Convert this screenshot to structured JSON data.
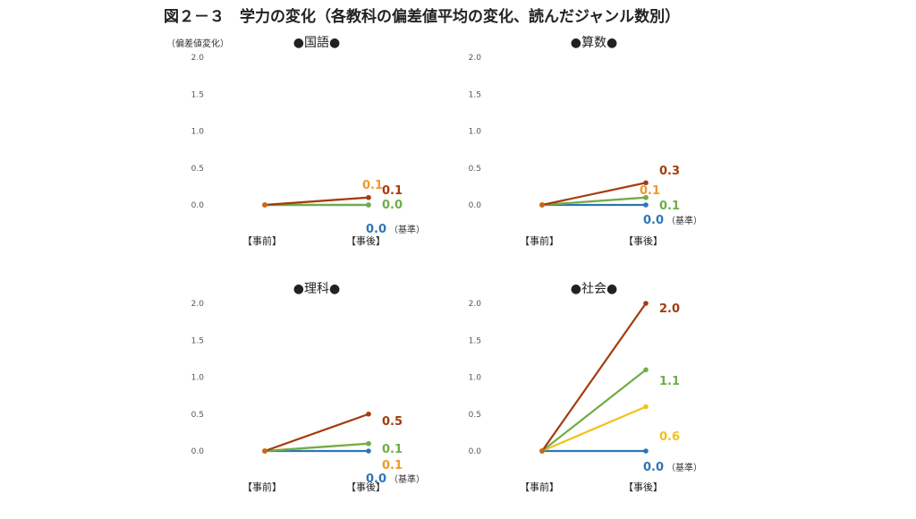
{
  "figure": {
    "title": "図２－３　学力の変化（各教科の偏差値平均の変化、読んだジャンル数別）",
    "y_unit": "（偏差値変化）"
  },
  "colors": {
    "series_0": "#2e75b6",
    "series_1": "#ed9a2a",
    "series_2": "#70ad47",
    "series_3": "#a33c0e",
    "series_2_social": "#f2c21b",
    "series_1_social": "#70ad47",
    "axis_text": "#555555",
    "dot": "#777777"
  },
  "base_note": "（基準）",
  "chart_data": [
    {
      "type": "line",
      "title": "●国語●",
      "categories": [
        "【事前】",
        "【事後】"
      ],
      "y_ticks": [
        "2.0",
        "1.5",
        "1.0",
        "0.5",
        "0.0"
      ],
      "ylim": [
        0,
        2
      ],
      "series": [
        {
          "values": [
            0,
            0.0
          ],
          "label": "0.0",
          "color": "#2e75b6",
          "base": true
        },
        {
          "values": [
            0,
            0.1
          ],
          "label": "0.1",
          "color": "#ed9a2a"
        },
        {
          "values": [
            0,
            0.0
          ],
          "label": "0.0",
          "color": "#70ad47"
        },
        {
          "values": [
            0,
            0.1
          ],
          "label": "0.1",
          "color": "#a33c0e"
        }
      ]
    },
    {
      "type": "line",
      "title": "●算数●",
      "categories": [
        "【事前】",
        "【事後】"
      ],
      "y_ticks": [
        "2.0",
        "1.5",
        "1.0",
        "0.5",
        "0.0"
      ],
      "ylim": [
        0,
        2
      ],
      "series": [
        {
          "values": [
            0,
            0.0
          ],
          "label": "0.0",
          "color": "#2e75b6",
          "base": true
        },
        {
          "values": [
            0,
            0.1
          ],
          "label": "0.1",
          "color": "#ed9a2a"
        },
        {
          "values": [
            0,
            0.1
          ],
          "label": "0.1",
          "color": "#70ad47"
        },
        {
          "values": [
            0,
            0.3
          ],
          "label": "0.3",
          "color": "#a33c0e"
        }
      ]
    },
    {
      "type": "line",
      "title": "●理科●",
      "categories": [
        "【事前】",
        "【事後】"
      ],
      "y_ticks": [
        "2.0",
        "1.5",
        "1.0",
        "0.5",
        "0.0"
      ],
      "ylim": [
        0,
        2
      ],
      "series": [
        {
          "values": [
            0,
            0.0
          ],
          "label": "0.0",
          "color": "#2e75b6",
          "base": true
        },
        {
          "values": [
            0,
            0.1
          ],
          "label": "0.1",
          "color": "#ed9a2a"
        },
        {
          "values": [
            0,
            0.1
          ],
          "label": "0.1",
          "color": "#70ad47"
        },
        {
          "values": [
            0,
            0.5
          ],
          "label": "0.5",
          "color": "#a33c0e"
        }
      ]
    },
    {
      "type": "line",
      "title": "●社会●",
      "categories": [
        "【事前】",
        "【事後】"
      ],
      "y_ticks": [
        "2.0",
        "1.5",
        "1.0",
        "0.5",
        "0.0"
      ],
      "ylim": [
        0,
        2
      ],
      "series": [
        {
          "values": [
            0,
            0.0
          ],
          "label": "0.0",
          "color": "#2e75b6",
          "base": true
        },
        {
          "values": [
            0,
            0.6
          ],
          "label": "0.6",
          "color": "#f2c21b"
        },
        {
          "values": [
            0,
            1.1
          ],
          "label": "1.1",
          "color": "#70ad47"
        },
        {
          "values": [
            0,
            2.0
          ],
          "label": "2.0",
          "color": "#a33c0e"
        }
      ]
    }
  ]
}
